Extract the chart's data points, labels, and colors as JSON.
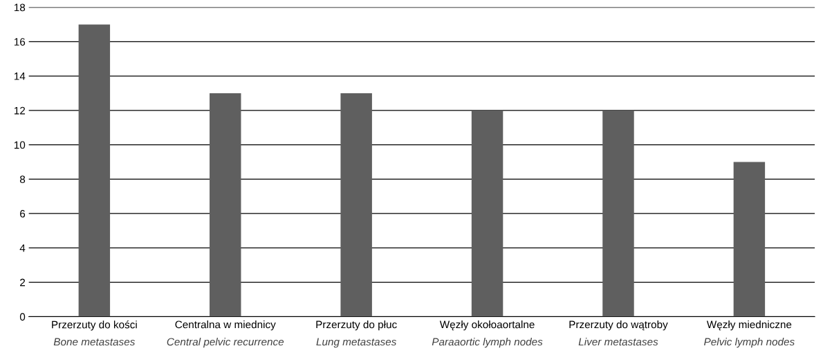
{
  "chart_data": {
    "type": "bar",
    "categories": [
      "Przerzuty do kości\nBone metastases",
      "Centralna w miednicy\nCentral pelvic recurrence",
      "Przerzuty do płuc\nLung metastases",
      "Węzły okołoaortalne\nParaaortic lymph nodes",
      "Przerzuty do wątroby\nLiver metastases",
      "Węzły miedniczne\nPelvic lymph nodes"
    ],
    "values": [
      17,
      13,
      13,
      12,
      12,
      9
    ],
    "color": "#5f5f5f",
    "ylim": [
      0,
      18
    ],
    "yticks": [
      0,
      2,
      4,
      6,
      8,
      10,
      12,
      14,
      16,
      18
    ],
    "grid": "y"
  }
}
